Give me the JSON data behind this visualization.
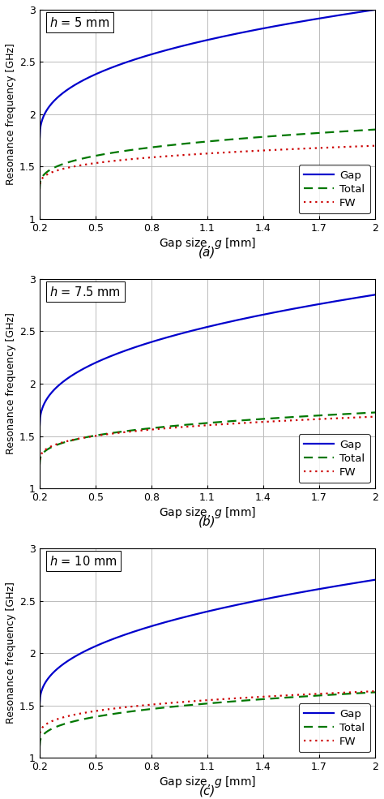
{
  "subplots": [
    {
      "label_text": "$h$ = 5 mm",
      "panel": "(a)",
      "gap": {
        "A": 1.75,
        "B": 3.0,
        "alpha": 0.38
      },
      "total": {
        "A": 1.28,
        "B": 1.855,
        "alpha": 0.32
      },
      "fw": {
        "A": 1.28,
        "B": 1.7,
        "alpha": 0.28
      }
    },
    {
      "label_text": "$h$ = 7.5 mm",
      "panel": "(b)",
      "gap": {
        "A": 1.58,
        "B": 2.85,
        "alpha": 0.4
      },
      "total": {
        "A": 1.22,
        "B": 1.725,
        "alpha": 0.32
      },
      "fw": {
        "A": 1.22,
        "B": 1.685,
        "alpha": 0.28
      }
    },
    {
      "label_text": "$h$ = 10 mm",
      "panel": "(c)",
      "gap": {
        "A": 1.5,
        "B": 2.7,
        "alpha": 0.42
      },
      "total": {
        "A": 1.1,
        "B": 1.625,
        "alpha": 0.33
      },
      "fw": {
        "A": 1.18,
        "B": 1.635,
        "alpha": 0.3
      }
    }
  ],
  "x_start": 0.2,
  "x_end": 2.0,
  "ylim": [
    1.0,
    3.0
  ],
  "yticks": [
    1.0,
    1.5,
    2.0,
    2.5,
    3.0
  ],
  "xticks": [
    0.2,
    0.5,
    0.8,
    1.1,
    1.4,
    1.7,
    2.0
  ],
  "xlabel": "Gap size, $g$ [mm]",
  "ylabel": "Resonance frequency [GHz]",
  "gap_color": "#0000cc",
  "total_color": "#007700",
  "fw_color": "#cc0000",
  "legend_gap": "Gap",
  "legend_total": "Total",
  "legend_fw": "FW",
  "background_color": "#ffffff",
  "grid_color": "#bbbbbb",
  "figsize": [
    4.74,
    9.85
  ],
  "dpi": 100
}
